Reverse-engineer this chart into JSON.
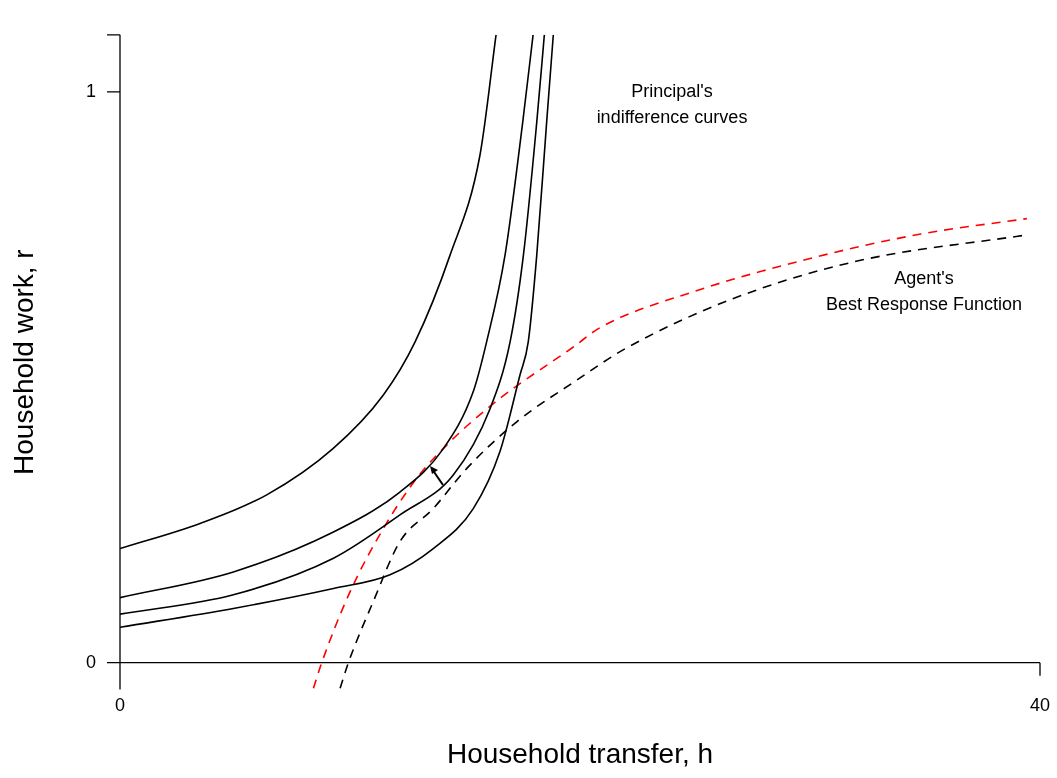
{
  "chart_data": {
    "type": "line",
    "xlabel": "Household transfer, h",
    "ylabel": "Household work, r",
    "xlim": [
      0,
      40
    ],
    "ylim": [
      -0.047,
      1.1
    ],
    "xticks": [
      0,
      40
    ],
    "yticks": [
      0,
      1,
      {
        "value": 1.1,
        "label": null
      }
    ],
    "marker": "none",
    "annotations": [
      "Principal's\nindifference curves",
      "Agent's\nBest Response Function"
    ],
    "series": [
      {
        "color": "#000000",
        "line_style": "solid",
        "x": [
          0,
          3.48,
          6.38,
          9.26,
          11.45,
          12.83,
          14.35,
          15.65,
          16.35
        ],
        "values": [
          0.2,
          0.244,
          0.294,
          0.375,
          0.469,
          0.562,
          0.714,
          0.889,
          1.1
        ]
      },
      {
        "color": "#000000",
        "line_style": "solid",
        "x": [
          0,
          4.93,
          9.28,
          12.17,
          14.06,
          15.36,
          15.94,
          16.74,
          17.51,
          17.96
        ],
        "values": [
          0.114,
          0.159,
          0.229,
          0.299,
          0.375,
          0.475,
          0.562,
          0.714,
          0.947,
          1.1
        ]
      },
      {
        "color": "#000000",
        "line_style": "solid",
        "x": [
          0,
          4.93,
          9.28,
          12.17,
          14.49,
          16.09,
          16.96,
          17.54,
          18.12,
          18.45
        ],
        "values": [
          0.085,
          0.119,
          0.183,
          0.259,
          0.329,
          0.445,
          0.562,
          0.714,
          0.947,
          1.1
        ]
      },
      {
        "color": "#000000",
        "line_style": "solid",
        "x": [
          0,
          4.93,
          9.28,
          11.74,
          13.62,
          15.36,
          16.52,
          17.39,
          17.75,
          18.12,
          18.55,
          18.84
        ],
        "values": [
          0.062,
          0.095,
          0.13,
          0.154,
          0.2,
          0.27,
          0.37,
          0.504,
          0.562,
          0.714,
          0.947,
          1.1
        ]
      },
      {
        "color": "#ff0000",
        "line_style": "dashed",
        "x": [
          8.41,
          8.77,
          10.0,
          11.45,
          12.9,
          14.35,
          16.52,
          19.71,
          20.87,
          24.86,
          30.29,
          34.82,
          39.43
        ],
        "values": [
          -0.045,
          0,
          0.124,
          0.235,
          0.323,
          0.387,
          0.463,
          0.553,
          0.587,
          0.649,
          0.711,
          0.751,
          0.778
        ]
      },
      {
        "color": "#000000",
        "line_style": "dashed",
        "x": [
          9.57,
          9.93,
          11.01,
          12.17,
          13.62,
          15.07,
          17.25,
          19.86,
          21.96,
          26.67,
          32.1,
          39.35
        ],
        "values": [
          -0.045,
          0,
          0.107,
          0.212,
          0.27,
          0.34,
          0.422,
          0.495,
          0.55,
          0.638,
          0.704,
          0.749
        ]
      }
    ]
  }
}
